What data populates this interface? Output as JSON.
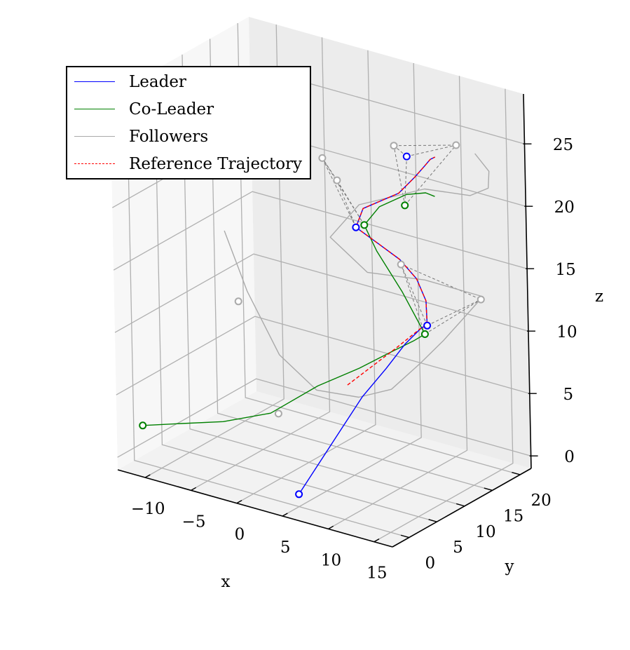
{
  "chart_data": {
    "type": "line",
    "projection": "3d",
    "title": "",
    "xlabel": "x",
    "ylabel": "y",
    "zlabel": "z",
    "xlim": [
      -13,
      17
    ],
    "ylim": [
      -3,
      22
    ],
    "zlim": [
      -1,
      29
    ],
    "xticks": [
      -10,
      -5,
      0,
      5,
      10,
      15
    ],
    "yticks": [
      0,
      5,
      10,
      15,
      20
    ],
    "zticks": [
      0,
      5,
      10,
      15,
      20,
      25
    ],
    "xtick_labels": [
      "−10",
      "−5",
      "0",
      "5",
      "10",
      "15"
    ],
    "ytick_labels": [
      "0",
      "5",
      "10",
      "15",
      "20"
    ],
    "ztick_labels": [
      "0",
      "5",
      "10",
      "15",
      "20",
      "25"
    ],
    "grid": true,
    "legend_position": "top-left",
    "colors": {
      "leader": "#0000ff",
      "coleader": "#008000",
      "followers": "#aaaaaa",
      "reference": "#ff0000",
      "connections": "#777777"
    },
    "series": [
      {
        "name": "Leader",
        "style": "solid",
        "color": "#0000ff",
        "points": [
          [
            5,
            0,
            0
          ],
          [
            5.86,
            2.48,
            2.15
          ],
          [
            6.72,
            4.96,
            4.3
          ],
          [
            7.58,
            7.44,
            6.45
          ],
          [
            9,
            9.5,
            8.5
          ],
          [
            10.5,
            10.5,
            10.5
          ],
          [
            12.5,
            10.3,
            12.3
          ],
          [
            13.3,
            10.0,
            12.7
          ],
          [
            12.26,
            11.57,
            14.07
          ],
          [
            10.93,
            12.13,
            15.42
          ],
          [
            9.39,
            11.69,
            16.77
          ],
          [
            7.82,
            10.3,
            18.12
          ],
          [
            6.5,
            8.7,
            19.5
          ],
          [
            6.79,
            9.57,
            20.85
          ],
          [
            9.62,
            11.36,
            22.2
          ],
          [
            10.93,
            12.13,
            23.55
          ],
          [
            11.93,
            12.3,
            24.6
          ],
          [
            12.6,
            12.3,
            25.3
          ],
          [
            13.3,
            12.0,
            25.7
          ]
        ]
      },
      {
        "name": "Co-Leader",
        "style": "solid",
        "color": "#008000",
        "points": [
          [
            -12,
            0,
            2
          ],
          [
            -9,
            1,
            2.5
          ],
          [
            -5,
            3,
            3
          ],
          [
            -1,
            5,
            4
          ],
          [
            3,
            7,
            6.5
          ],
          [
            7,
            8,
            8.5
          ],
          [
            10,
            9,
            10.2
          ],
          [
            12,
            9.6,
            11.3
          ],
          [
            13.1,
            9.9,
            12
          ],
          [
            10,
            11,
            14.5
          ],
          [
            7,
            11.5,
            17
          ],
          [
            6,
            11,
            19
          ],
          [
            8,
            10.5,
            21
          ],
          [
            11,
            10.5,
            22.6
          ],
          [
            13,
            10.7,
            23.1
          ],
          [
            14.3,
            10.2,
            23.2
          ]
        ]
      },
      {
        "name": "Followers",
        "style": "solid",
        "color": "#aaaaaa",
        "points": [
          [
            -10,
            12,
            15
          ],
          [
            -7,
            11,
            11
          ],
          [
            -3,
            10,
            7
          ],
          [
            1,
            10,
            5
          ],
          [
            5,
            11,
            5
          ],
          [
            8,
            12,
            6
          ],
          [
            10,
            14,
            8
          ],
          [
            12,
            15,
            10
          ],
          [
            14,
            15,
            12
          ],
          [
            15.9,
            15.8,
            14.1
          ],
          [
            11,
            13.5,
            15
          ],
          [
            5,
            13,
            14.5
          ],
          [
            1,
            13,
            16.5
          ],
          [
            3,
            15,
            19
          ],
          [
            9,
            17,
            21
          ],
          [
            14,
            17,
            21.5
          ],
          [
            16,
            17,
            22.5
          ],
          [
            15.5,
            18,
            23.5
          ],
          [
            14.3,
            17.5,
            24.8
          ]
        ]
      },
      {
        "name": "Reference Trajectory",
        "style": "dashed",
        "color": "#ff0000",
        "points": [
          [
            7.5,
            5,
            8
          ],
          [
            9,
            7,
            9.3
          ],
          [
            10.5,
            9,
            10.6
          ],
          [
            12.5,
            10.3,
            12.3
          ],
          [
            13.3,
            10.0,
            12.7
          ],
          [
            12.26,
            11.57,
            14.07
          ],
          [
            10.93,
            12.13,
            15.42
          ],
          [
            9.39,
            11.69,
            16.77
          ],
          [
            7.82,
            10.3,
            18.12
          ],
          [
            6.5,
            8.7,
            19.5
          ],
          [
            6.79,
            9.57,
            20.85
          ],
          [
            9.62,
            11.36,
            22.2
          ],
          [
            10.93,
            12.13,
            23.55
          ],
          [
            11.93,
            12.3,
            24.6
          ],
          [
            12.6,
            12.3,
            25.3
          ],
          [
            13.3,
            12.0,
            25.7
          ]
        ]
      }
    ],
    "markers": [
      {
        "group": "leader",
        "points": [
          [
            5,
            0,
            0
          ],
          [
            13.3,
            10.0,
            12.7
          ],
          [
            6.5,
            8.7,
            19.5
          ],
          [
            10.5,
            11.5,
            25.3
          ]
        ]
      },
      {
        "group": "coleader",
        "points": [
          [
            -12,
            0,
            2
          ],
          [
            13.1,
            9.9,
            12
          ],
          [
            6,
            11,
            19
          ],
          [
            10.5,
            11,
            21.5
          ]
        ]
      },
      {
        "group": "followers",
        "points": [
          [
            -2,
            8,
            3
          ],
          [
            -8,
            11,
            10
          ],
          [
            9.2,
            12.2,
            16.2
          ],
          [
            16.3,
            14.8,
            14.2
          ],
          [
            2.8,
            11.5,
            21.8
          ],
          [
            0,
            13.5,
            22.5
          ],
          [
            8.5,
            12.5,
            25.5
          ],
          [
            13.8,
            15,
            26
          ]
        ]
      }
    ],
    "formation_links": [
      [
        [
          13.3,
          10.0,
          12.7
        ],
        [
          13.1,
          9.9,
          12
        ]
      ],
      [
        [
          13.3,
          10.0,
          12.7
        ],
        [
          9.2,
          12.2,
          16.2
        ]
      ],
      [
        [
          13.3,
          10.0,
          12.7
        ],
        [
          16.3,
          14.8,
          14.2
        ]
      ],
      [
        [
          13.1,
          9.9,
          12
        ],
        [
          9.2,
          12.2,
          16.2
        ]
      ],
      [
        [
          13.1,
          9.9,
          12
        ],
        [
          16.3,
          14.8,
          14.2
        ]
      ],
      [
        [
          9.2,
          12.2,
          16.2
        ],
        [
          16.3,
          14.8,
          14.2
        ]
      ],
      [
        [
          6.5,
          8.7,
          19.5
        ],
        [
          6,
          11,
          19
        ]
      ],
      [
        [
          6.5,
          8.7,
          19.5
        ],
        [
          2.8,
          11.5,
          21.8
        ]
      ],
      [
        [
          6.5,
          8.7,
          19.5
        ],
        [
          0,
          13.5,
          22.5
        ]
      ],
      [
        [
          6,
          11,
          19
        ],
        [
          2.8,
          11.5,
          21.8
        ]
      ],
      [
        [
          6,
          11,
          19
        ],
        [
          0,
          13.5,
          22.5
        ]
      ],
      [
        [
          2.8,
          11.5,
          21.8
        ],
        [
          0,
          13.5,
          22.5
        ]
      ],
      [
        [
          10.5,
          11.5,
          25.3
        ],
        [
          10.5,
          11,
          21.5
        ]
      ],
      [
        [
          10.5,
          11.5,
          25.3
        ],
        [
          8.5,
          12.5,
          25.5
        ]
      ],
      [
        [
          10.5,
          11.5,
          25.3
        ],
        [
          13.8,
          15,
          26
        ]
      ],
      [
        [
          10.5,
          11,
          21.5
        ],
        [
          8.5,
          12.5,
          25.5
        ]
      ],
      [
        [
          10.5,
          11,
          21.5
        ],
        [
          13.8,
          15,
          26
        ]
      ],
      [
        [
          8.5,
          12.5,
          25.5
        ],
        [
          13.8,
          15,
          26
        ]
      ]
    ]
  }
}
